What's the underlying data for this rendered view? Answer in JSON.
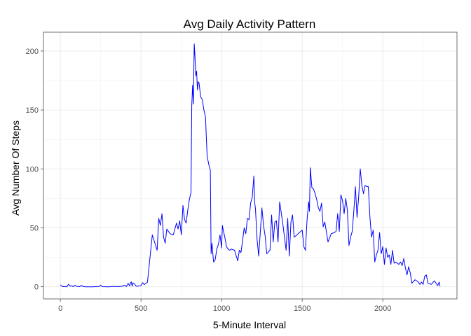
{
  "chart_data": {
    "type": "line",
    "title": "Avg Daily Activity Pattern",
    "xlabel": "5-Minute Interval",
    "ylabel": "Avg Number Of Steps",
    "xlim": [
      -105,
      2460
    ],
    "ylim": [
      -10.3,
      216
    ],
    "xticks": [
      0,
      500,
      1000,
      1500,
      2000
    ],
    "yticks": [
      0,
      50,
      100,
      150,
      200
    ],
    "xminor": [
      250,
      750,
      1250,
      1750,
      2250
    ],
    "yminor": [
      25,
      75,
      125,
      175
    ],
    "grid": true,
    "line_color": "#0000ff",
    "series": [
      {
        "x": [
          0,
          10,
          20,
          30,
          40,
          50,
          60,
          70,
          80,
          90,
          100,
          120,
          130,
          140,
          160,
          200,
          240,
          250,
          260,
          300,
          320,
          340,
          360,
          380,
          400,
          410,
          420,
          430,
          435,
          440,
          445,
          450,
          460,
          470,
          480,
          500,
          510,
          520,
          540,
          570,
          600,
          610,
          620,
          630,
          640,
          650,
          660,
          680,
          700,
          720,
          730,
          740,
          750,
          760,
          770,
          780,
          790,
          800,
          810,
          815,
          820,
          825,
          830,
          835,
          840,
          845,
          850,
          855,
          860,
          870,
          880,
          890,
          900,
          910,
          920,
          930,
          935,
          940,
          950,
          960,
          970,
          980,
          990,
          1000,
          1005,
          1010,
          1020,
          1030,
          1040,
          1050,
          1060,
          1080,
          1100,
          1110,
          1120,
          1130,
          1140,
          1150,
          1160,
          1170,
          1180,
          1190,
          1200,
          1205,
          1210,
          1220,
          1230,
          1250,
          1260,
          1270,
          1280,
          1300,
          1310,
          1320,
          1330,
          1340,
          1350,
          1360,
          1380,
          1400,
          1410,
          1420,
          1430,
          1440,
          1450,
          1500,
          1510,
          1520,
          1530,
          1540,
          1545,
          1550,
          1560,
          1570,
          1580,
          1590,
          1600,
          1610,
          1620,
          1630,
          1640,
          1660,
          1680,
          1700,
          1710,
          1720,
          1730,
          1740,
          1750,
          1760,
          1770,
          1780,
          1790,
          1800,
          1810,
          1820,
          1830,
          1840,
          1850,
          1860,
          1870,
          1880,
          1890,
          1900,
          1910,
          1920,
          1930,
          1940,
          1950,
          1960,
          1970,
          1980,
          1990,
          2000,
          2005,
          2010,
          2020,
          2030,
          2040,
          2050,
          2060,
          2070,
          2080,
          2090,
          2100,
          2110,
          2120,
          2130,
          2140,
          2150,
          2160,
          2170,
          2180,
          2200,
          2220,
          2230,
          2240,
          2250,
          2260,
          2270,
          2280,
          2300,
          2320,
          2330,
          2340,
          2350,
          2355
        ],
        "y": [
          1.7,
          0.3,
          0.1,
          0.2,
          0,
          2.1,
          0.5,
          0.8,
          0.1,
          1.3,
          0.4,
          0.1,
          1.2,
          0.2,
          0,
          0,
          0.2,
          1.4,
          0.1,
          0,
          0.2,
          0.3,
          0.1,
          0.4,
          1.3,
          0.2,
          2.8,
          0.7,
          3.4,
          4.1,
          0.5,
          3.3,
          2.4,
          0.4,
          0.5,
          1,
          3.5,
          1.8,
          3.9,
          44,
          31,
          58,
          52,
          62,
          42,
          37,
          49,
          45,
          44,
          54,
          49,
          56,
          44,
          69,
          57,
          54,
          65,
          74,
          80,
          154,
          171,
          155,
          206,
          195,
          179,
          183,
          167,
          174,
          173,
          161,
          159,
          150,
          144,
          111,
          104,
          99,
          28,
          37,
          21,
          23,
          32,
          36,
          44,
          33,
          52,
          48,
          42,
          34,
          32,
          31,
          32,
          31,
          22,
          31,
          29,
          39,
          50,
          45,
          58,
          57,
          71,
          76,
          94,
          72,
          66,
          40,
          26,
          67,
          52,
          43,
          28,
          31,
          61,
          38,
          55,
          56,
          38,
          72,
          53,
          31,
          58,
          26,
          55,
          61,
          42,
          48,
          34,
          31,
          57,
          72,
          64,
          101,
          84,
          83,
          79,
          74,
          67,
          64,
          71,
          51,
          55,
          38,
          45,
          46,
          47,
          62,
          47,
          78,
          73,
          62,
          75,
          65,
          35,
          42,
          47,
          64,
          85,
          59,
          76,
          100,
          86,
          79,
          86,
          85,
          85,
          59,
          42,
          48,
          21,
          27,
          31,
          46,
          28,
          34,
          27,
          19,
          33,
          25,
          27,
          19,
          31,
          20,
          21,
          20,
          19,
          21,
          18,
          24,
          16,
          10,
          17,
          12,
          3,
          6,
          4,
          2,
          4,
          2,
          9,
          10,
          3,
          2,
          5,
          3,
          1,
          4,
          0.3
        ]
      }
    ]
  }
}
